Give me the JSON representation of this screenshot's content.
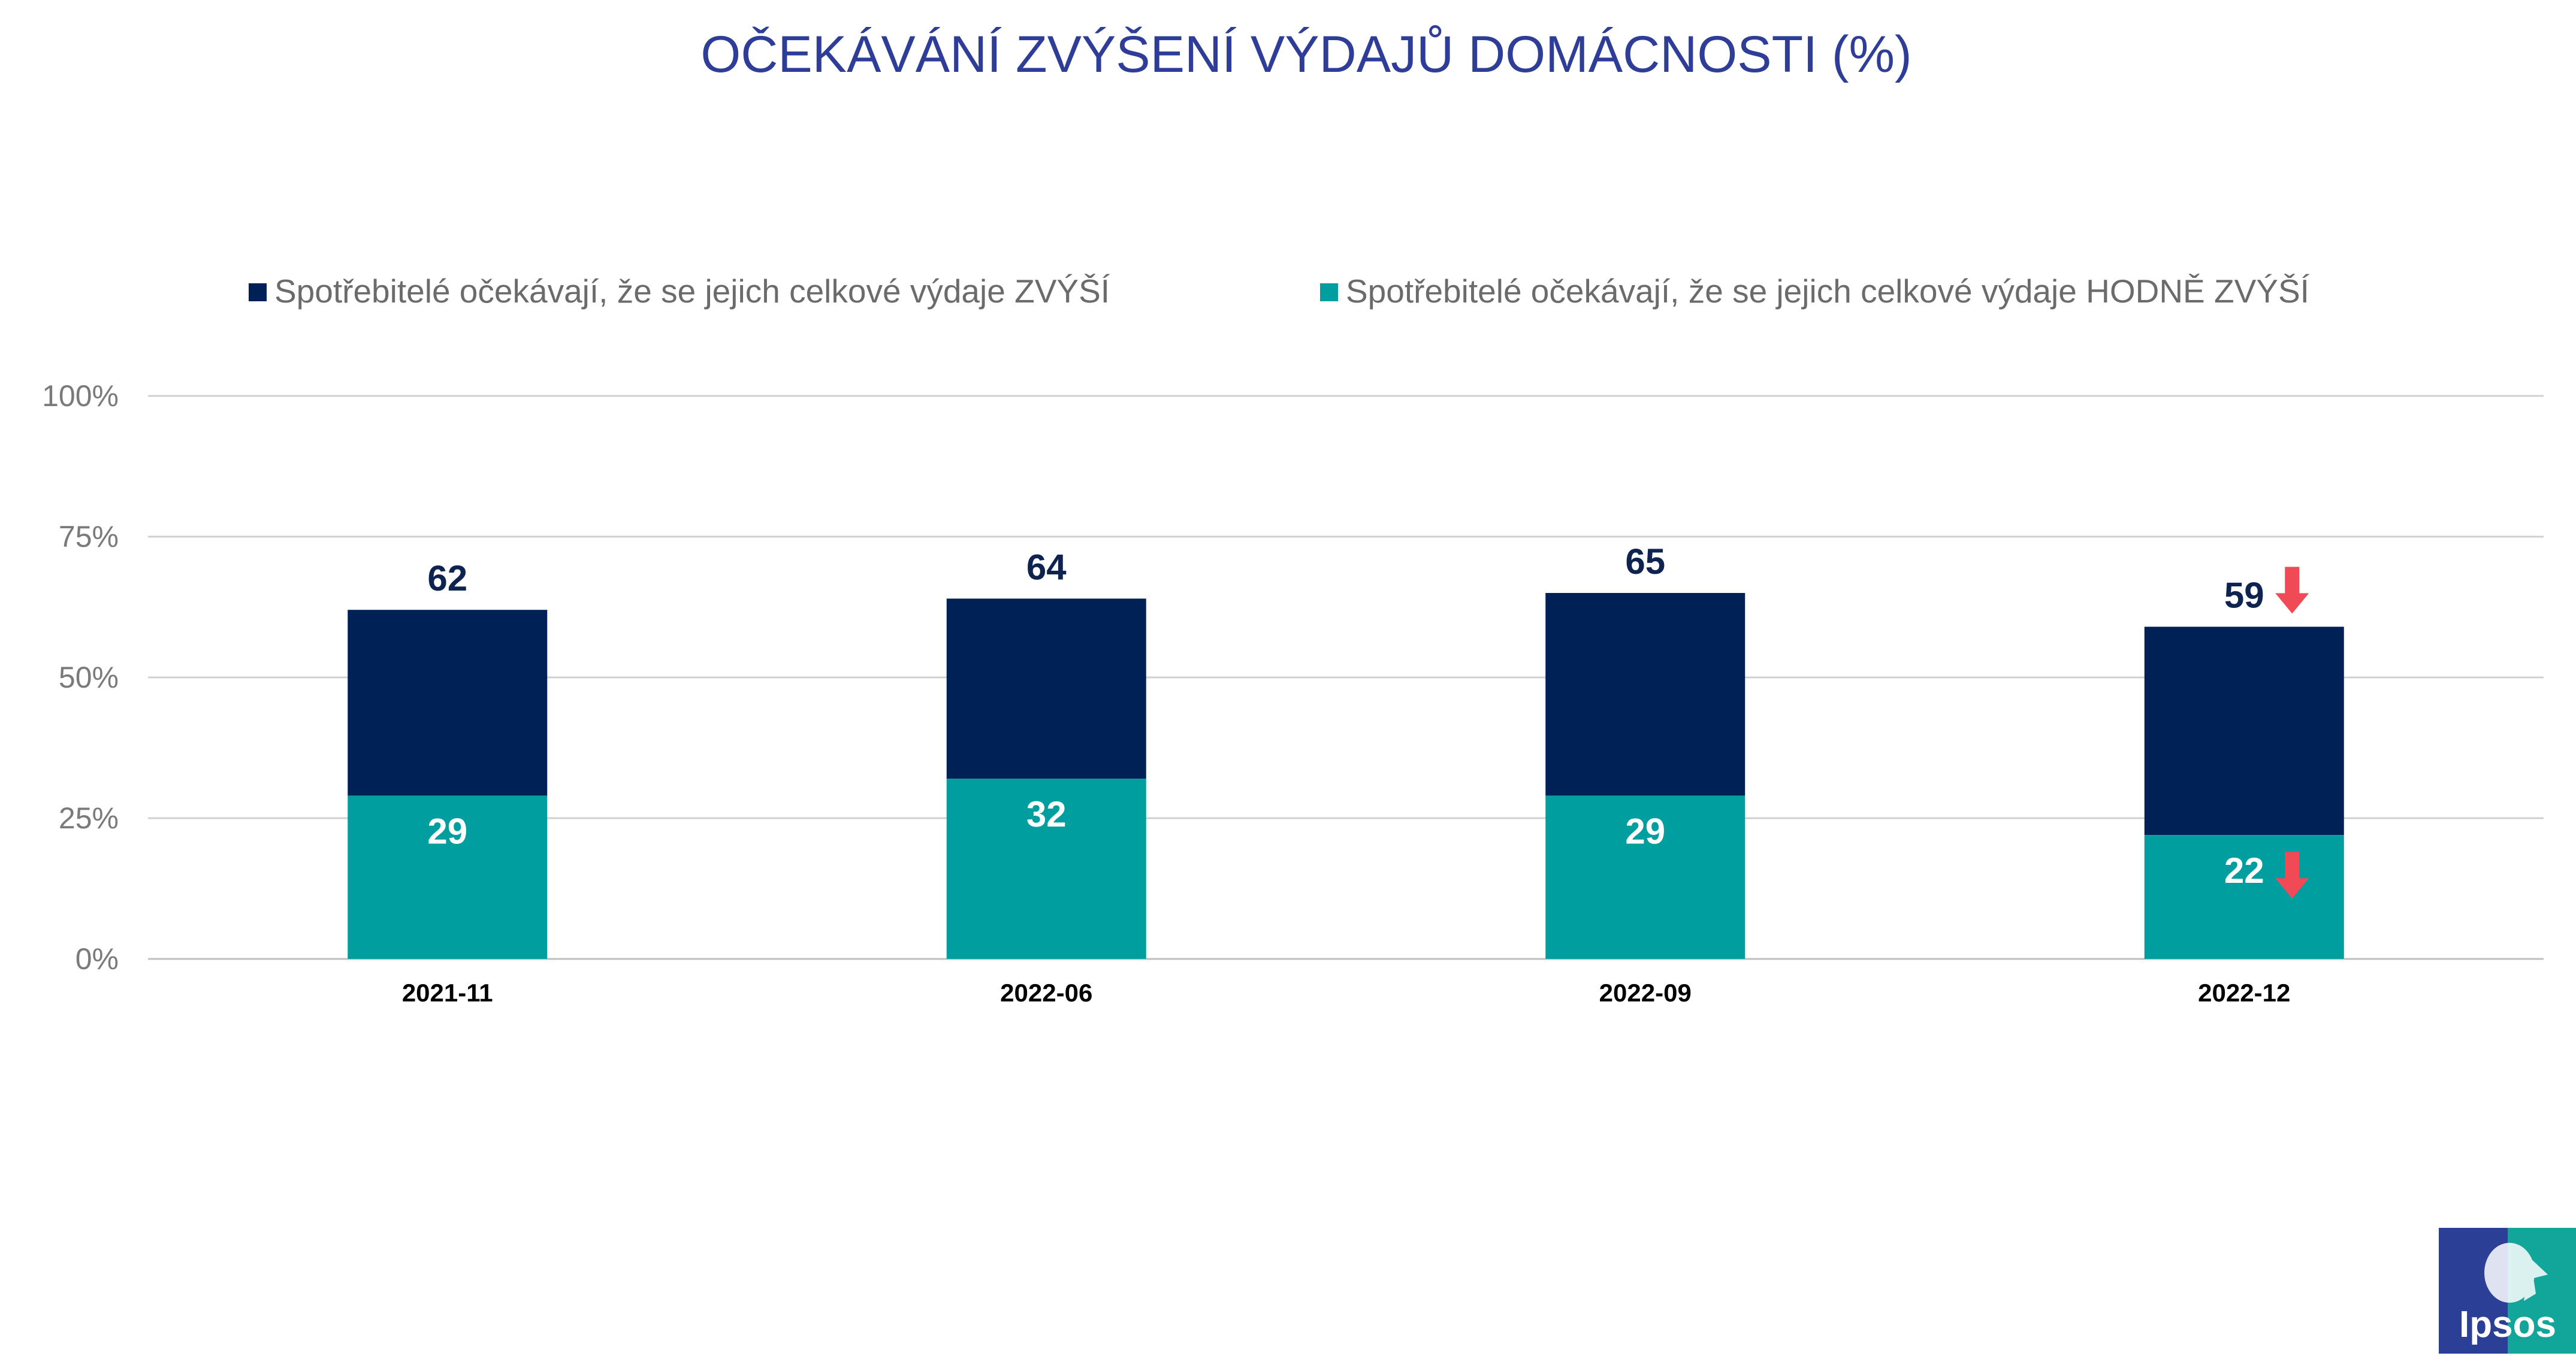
{
  "chart_data": {
    "type": "bar",
    "stacked": true,
    "title": "OČEKÁVÁNÍ ZVÝŠENÍ VÝDAJŮ DOMÁCNOSTI (%)",
    "categories": [
      "2021-11",
      "2022-06",
      "2022-09",
      "2022-12"
    ],
    "series": [
      {
        "name": "Spotřebitelé očekávají, že se jejich celkové výdaje ZVÝŠÍ",
        "color": "#002155",
        "values": [
          62,
          64,
          65,
          59
        ],
        "labels": [
          "62",
          "64",
          "65",
          "59"
        ],
        "decline_marker": [
          false,
          false,
          false,
          true
        ]
      },
      {
        "name": "Spotřebitelé očekávají, že se jejich celkové výdaje HODNĚ ZVÝŠÍ",
        "color": "#009e9e",
        "values": [
          29,
          32,
          29,
          22
        ],
        "labels": [
          "29",
          "32",
          "29",
          "22"
        ],
        "decline_marker": [
          false,
          false,
          false,
          true
        ]
      }
    ],
    "yaxis": {
      "ylim": [
        0,
        100
      ],
      "ticks": [
        0,
        25,
        50,
        75,
        100
      ],
      "tick_labels": [
        "0%",
        "25%",
        "50%",
        "75%",
        "100%"
      ]
    },
    "grid": true,
    "legend_position": "top",
    "decline_color": "#f04a57"
  },
  "logo": {
    "text": "Ipsos",
    "color_left": "#2b3f97",
    "color_right": "#12a69a"
  }
}
